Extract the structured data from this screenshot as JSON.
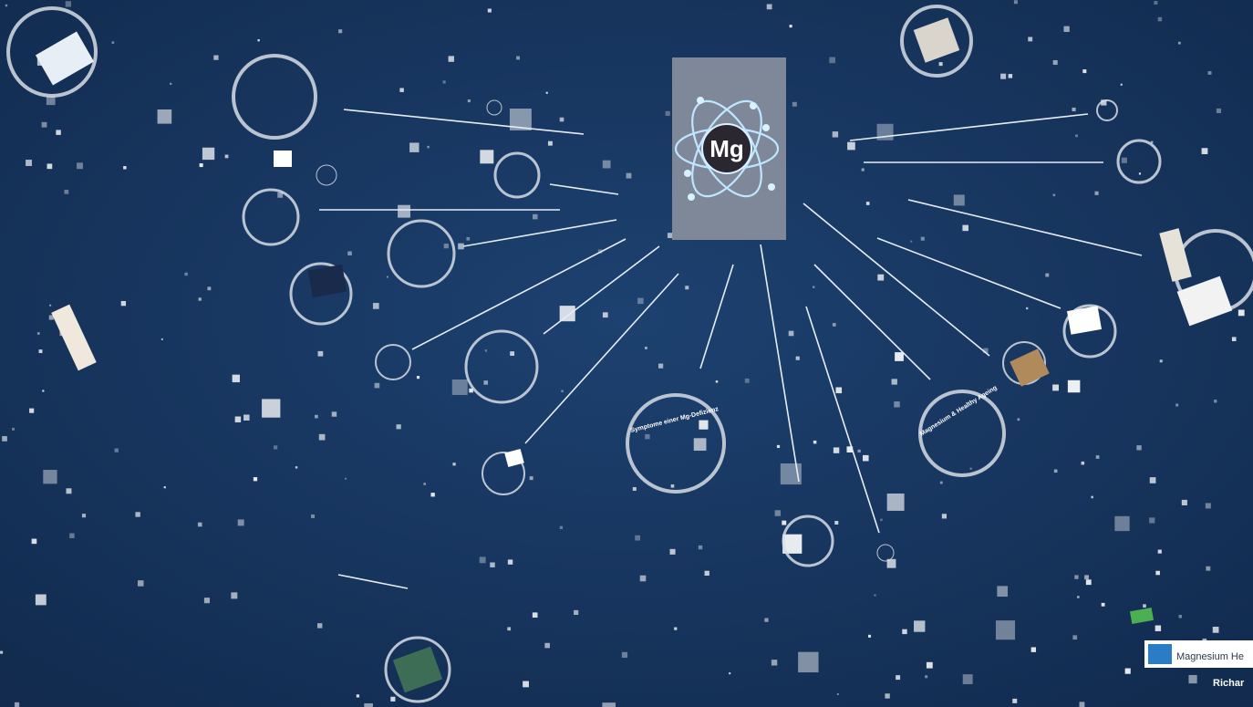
{
  "canvas": {
    "center_label": "Mg",
    "topics": [
      "Symptome einer Mg-Defizienz",
      "Magnesium & Healthy Ageing"
    ],
    "logo_text": "Magnesium He",
    "author": "Richar"
  }
}
